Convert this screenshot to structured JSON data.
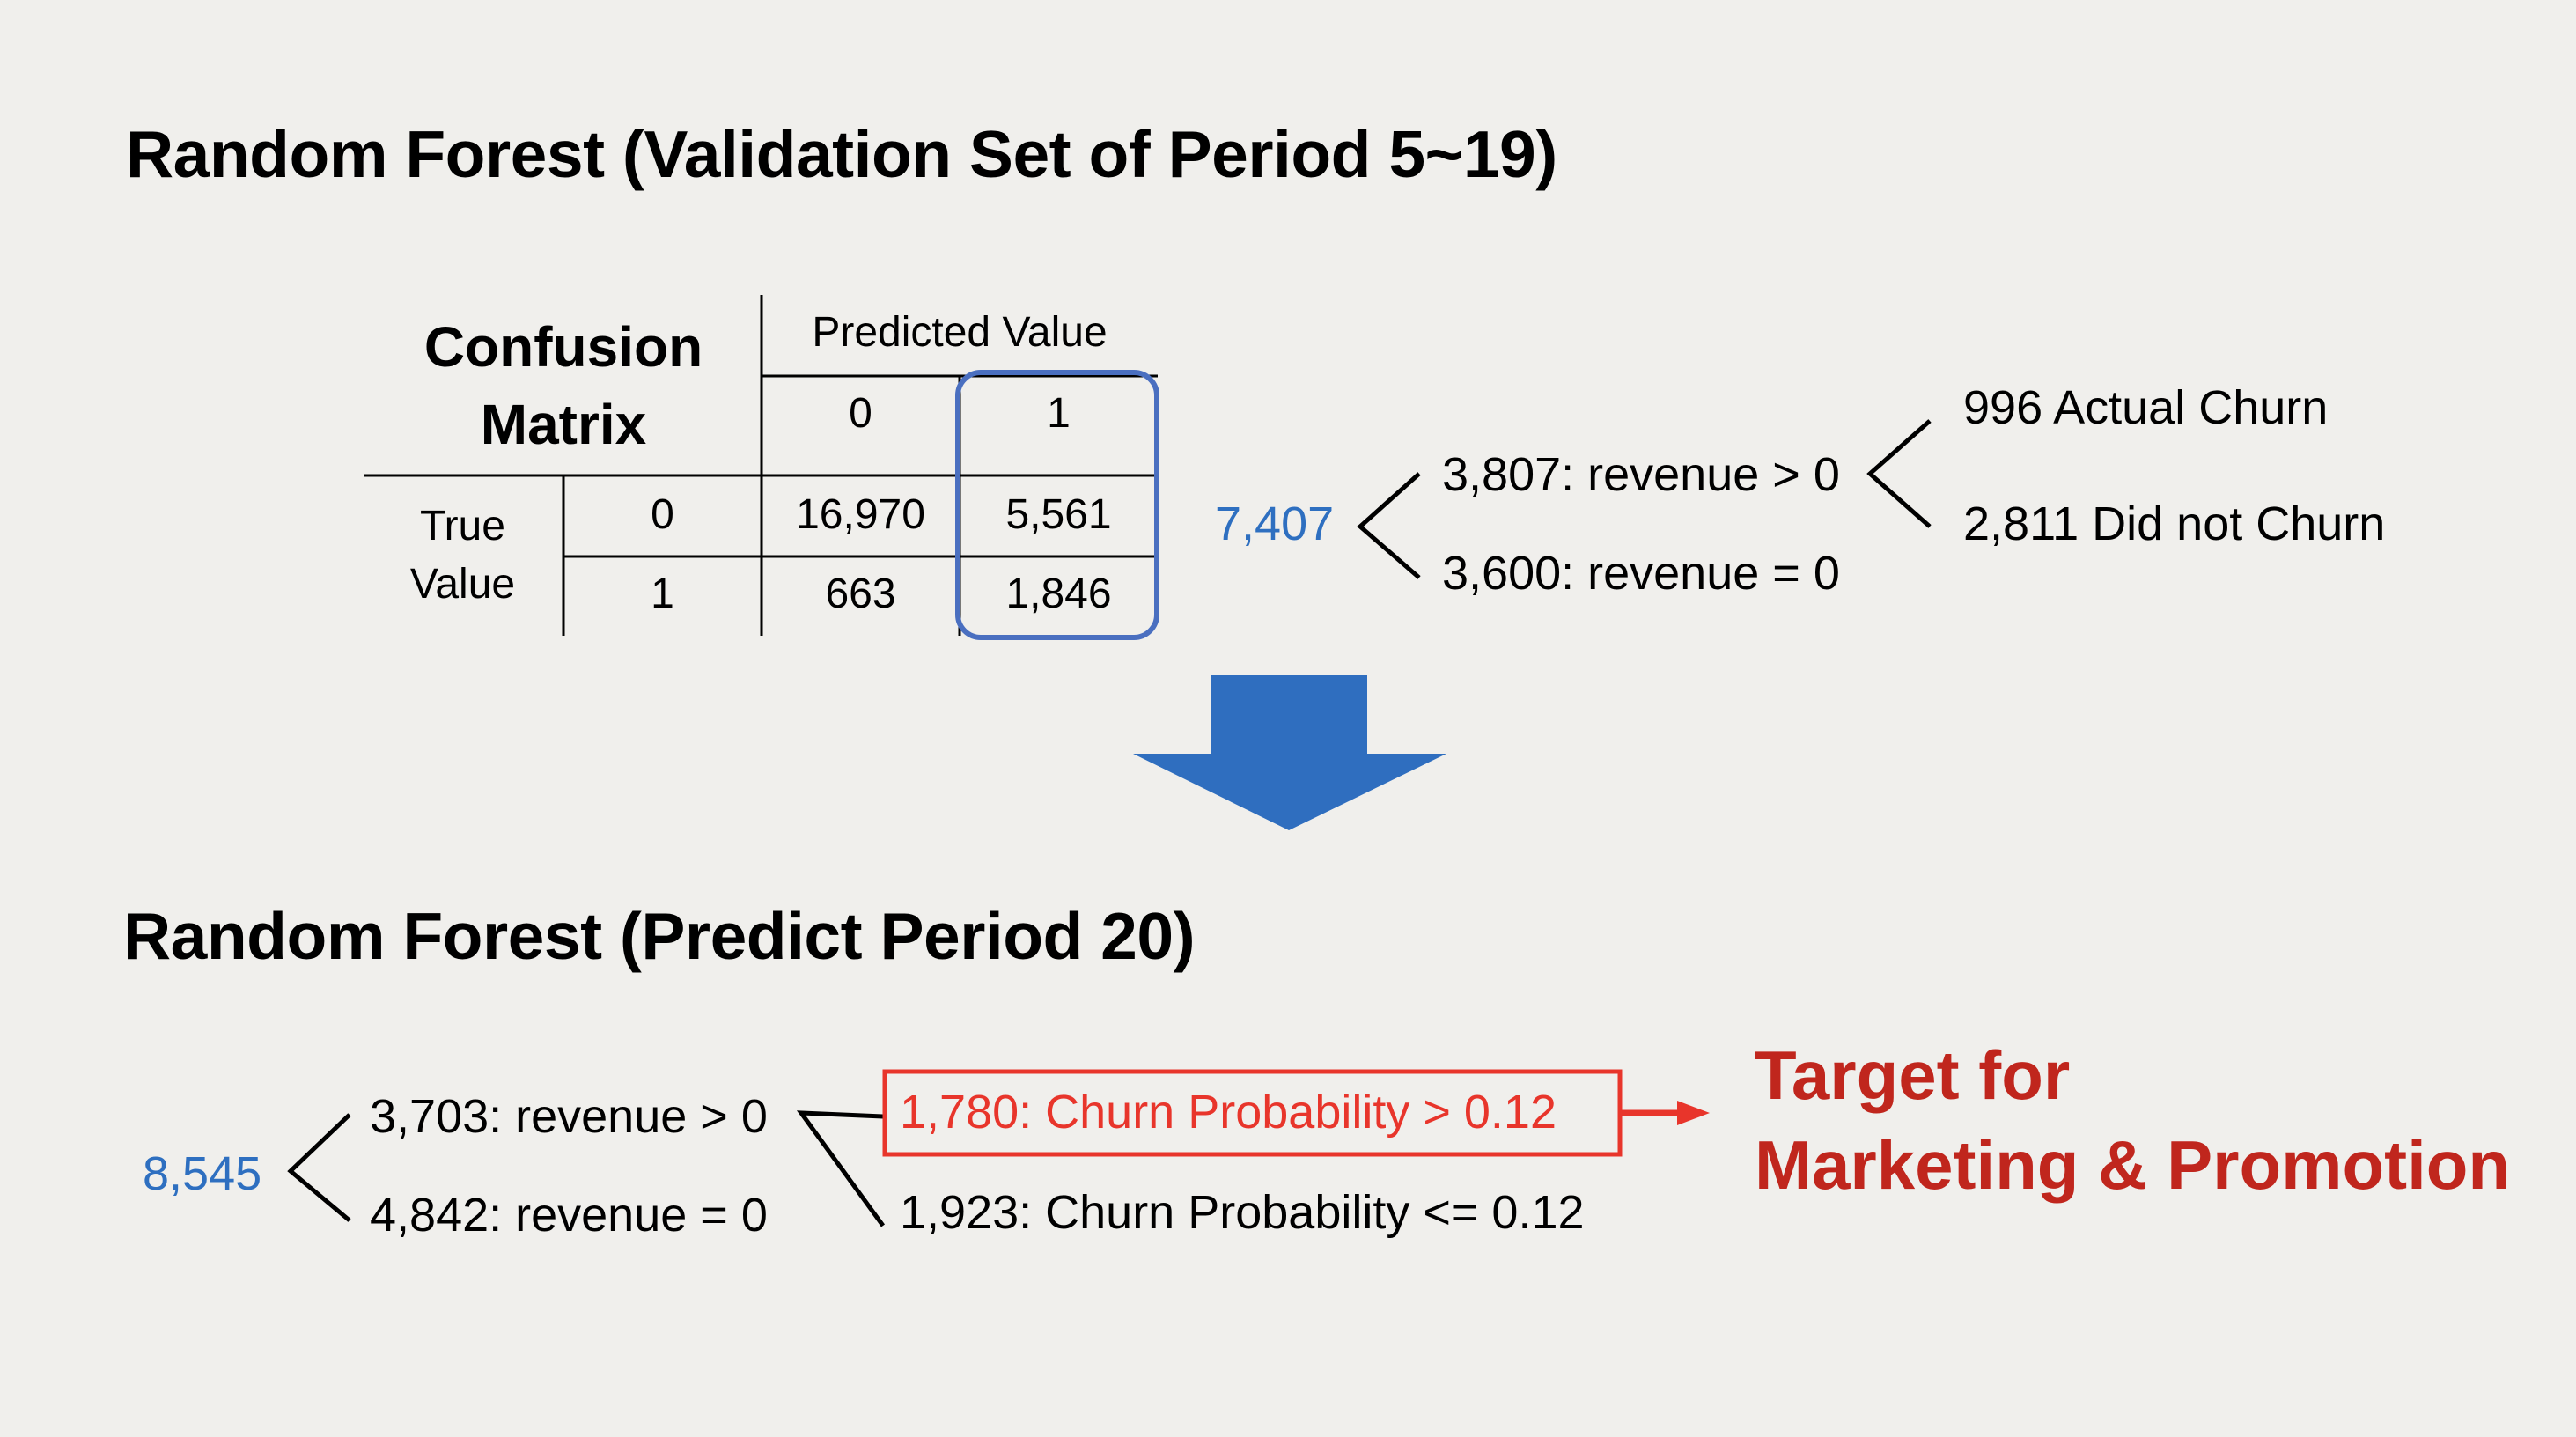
{
  "validation": {
    "title": "Random Forest (Validation Set of Period 5~19)",
    "confusion_matrix": {
      "label_line1": "Confusion",
      "label_line2": "Matrix",
      "predicted_header": "Predicted Value",
      "pred_col_0": "0",
      "pred_col_1": "1",
      "true_label_line1": "True",
      "true_label_line2": "Value",
      "true_row_0": "0",
      "true_row_1": "1",
      "cells": {
        "r0c0": "16,970",
        "r0c1": "5,561",
        "r1c0": "663",
        "r1c1": "1,846"
      }
    },
    "tree": {
      "root": "7,407",
      "branch_top": "3,807: revenue > 0",
      "branch_bottom": "3,600: revenue = 0",
      "leaf_top": "996 Actual Churn",
      "leaf_bottom": "2,811 Did not Churn"
    }
  },
  "prediction": {
    "title": "Random Forest (Predict Period 20)",
    "tree": {
      "root": "8,545",
      "branch_top": "3,703: revenue > 0",
      "branch_bottom": "4,842: revenue = 0",
      "leaf_top": "1,780: Churn Probability > 0.12",
      "leaf_bottom": "1,923: Churn Probability <= 0.12"
    },
    "target_line1": "Target for",
    "target_line2": "Marketing & Promotion"
  },
  "colors": {
    "background": "#f0efec",
    "blue_text": "#2e6fc0",
    "highlight_box": "#4a6fc0",
    "arrow": "#2f6ebf",
    "red": "#e8352b",
    "dark_red": "#c0261d"
  }
}
